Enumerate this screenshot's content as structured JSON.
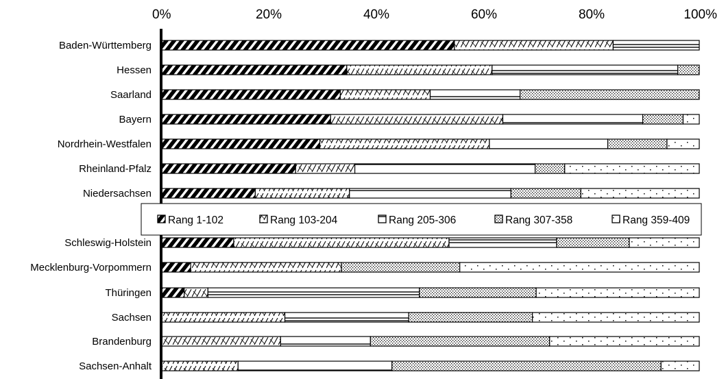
{
  "chart_data": {
    "type": "bar",
    "orientation": "horizontal",
    "stacked": "percent",
    "title": "",
    "xlabel": "",
    "ylabel": "",
    "xlim": [
      0,
      100
    ],
    "x_ticks": [
      "0%",
      "20%",
      "40%",
      "60%",
      "80%",
      "100%"
    ],
    "grid": false,
    "legend_position": "middle",
    "categories": [
      "Baden-Württemberg",
      "Hessen",
      "Saarland",
      "Bayern",
      "Nordrhein-Westfalen",
      "Rheinland-Pfalz",
      "Niedersachsen",
      "Schleswig-Holstein",
      "Mecklenburg-Vorpommern",
      "Thüringen",
      "Sachsen",
      "Brandenburg",
      "Sachsen-Anhalt"
    ],
    "series": [
      {
        "name": "Rang 1-102",
        "pattern": "heavy-diagonal",
        "values": [
          54.5,
          34.5,
          33.3,
          31.5,
          29.5,
          25.0,
          17.5,
          13.5,
          5.5,
          4.3,
          0,
          0,
          0
        ]
      },
      {
        "name": "Rang 103-204",
        "pattern": "zigzag",
        "values": [
          29.5,
          27.0,
          16.7,
          32.0,
          31.5,
          11.0,
          17.5,
          40.0,
          28.0,
          4.4,
          23.0,
          22.2,
          14.3
        ]
      },
      {
        "name": "Rang 205-306",
        "pattern": "horizontal-lines",
        "values": [
          16.0,
          34.5,
          16.7,
          26.0,
          22.0,
          33.5,
          30.0,
          20.0,
          0,
          39.3,
          23.0,
          16.7,
          28.6
        ]
      },
      {
        "name": "Rang 307-358",
        "pattern": "dense-dots",
        "values": [
          0,
          4.0,
          33.3,
          7.5,
          11.0,
          5.5,
          13.0,
          13.5,
          22.0,
          21.7,
          23.0,
          33.3,
          50.0
        ]
      },
      {
        "name": "Rang 359-409",
        "pattern": "sparse-dots",
        "values": [
          0,
          0,
          0,
          3.0,
          6.0,
          25.0,
          22.0,
          13.0,
          44.5,
          30.3,
          31.0,
          27.8,
          7.1
        ]
      }
    ],
    "colors": {
      "line": "#000000",
      "fill": "#ffffff"
    }
  }
}
